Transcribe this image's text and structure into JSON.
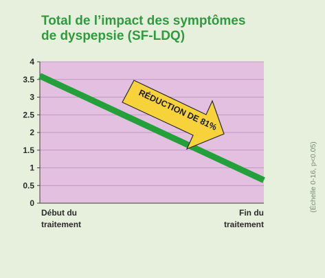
{
  "chart_data": {
    "type": "line",
    "title_line1": "Total de l’impact des symptômes",
    "title_line2": "de dyspepsie (SF-LDQ)",
    "x": [
      "Début du traitement",
      "Fin du traitement"
    ],
    "x_labels": [
      {
        "line1": "Début du",
        "line2": "traitement"
      },
      {
        "line1": "Fin du",
        "line2": "traitement"
      }
    ],
    "y_ticks": [
      "0",
      "0.5",
      "1",
      "1.5",
      "2",
      "2.5",
      "3",
      "3.5",
      "4"
    ],
    "ylim": [
      0,
      4
    ],
    "series": [
      {
        "values": [
          3.6,
          0.65
        ]
      }
    ],
    "annotation": "RÉDUCTION DE 81%",
    "note": "(Échelle 0-16, p<0.05)",
    "grid": true,
    "colors": {
      "background": "#e6f0dc",
      "plot": "#e3bfe0",
      "line": "#23a03a",
      "title": "#2f9a3e",
      "arrow_fill": "#f7d23a",
      "arrow_stroke": "#2a2a2a"
    }
  }
}
